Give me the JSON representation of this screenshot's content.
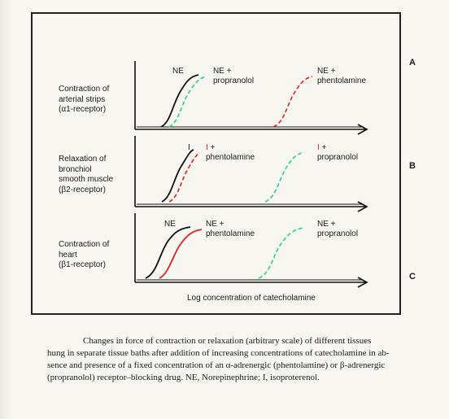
{
  "panels": [
    {
      "letter": "A",
      "label_lines": [
        "Contraction of",
        "arterial strips",
        "(α1-receptor)"
      ],
      "curves": [
        {
          "label_lines": [
            "NE"
          ],
          "style": "solid",
          "color": "#111111"
        },
        {
          "label_lines": [
            "NE +",
            "propranolol"
          ],
          "style": "dashed",
          "color": "#2bd27a"
        },
        {
          "label_lines": [
            "NE +",
            "phentolamine"
          ],
          "style": "dashed",
          "color": "#e2231a"
        }
      ]
    },
    {
      "letter": "B",
      "label_lines": [
        "Relaxation of",
        "bronchiol",
        "smooth muscle",
        "(β2-receptor)"
      ],
      "curves": [
        {
          "label_lines": [
            "I"
          ],
          "style": "solid",
          "color": "#111111"
        },
        {
          "label_prefix": "I",
          "label_suffix": " +",
          "label_line2": "phentolamine",
          "style": "dashed",
          "color": "#e2231a"
        },
        {
          "label_prefix": "I",
          "label_suffix": " +",
          "label_line2": "propranolol",
          "style": "dashed",
          "color": "#2bd27a"
        }
      ]
    },
    {
      "letter": "C",
      "label_lines": [
        "Contraction of",
        "heart",
        "(β1-receptor)"
      ],
      "curves": [
        {
          "label_lines": [
            "NE"
          ],
          "style": "solid",
          "color": "#111111"
        },
        {
          "label_lines": [
            "NE +",
            "phentolamine"
          ],
          "style": "solid",
          "color": "#e2231a"
        },
        {
          "label_lines": [
            "NE +",
            "propranolol"
          ],
          "style": "dashed",
          "color": "#2bd27a"
        }
      ]
    }
  ],
  "x_axis_label": "Log concentration of catecholamine",
  "caption_lines": [
    "Changes in force of contraction or relaxation (arbitrary scale) of different tissues",
    "hung in separate tissue baths after addition of increasing concentrations of catecholamine in ab-",
    "sence and presence of a fixed concentration of an α-adrenergic (phentolamine) or β-adrenergic",
    "(propranolol) receptor–blocking drug. NE, Norepinephrine; I, isoproterenol."
  ]
}
